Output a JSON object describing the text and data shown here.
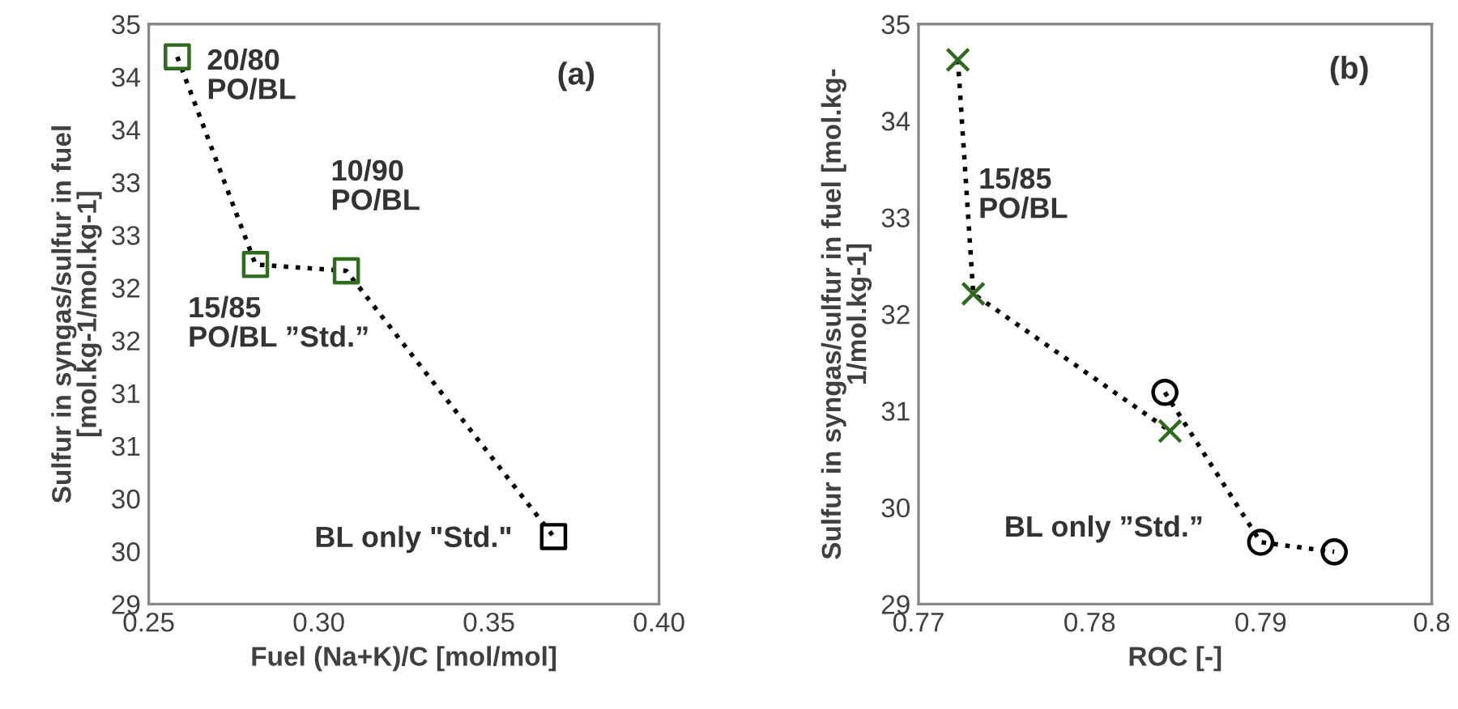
{
  "chart_data": [
    {
      "type": "scatter",
      "xlabel": "Fuel (Na+K)/C [mol/mol]",
      "ylabel": "Sulfur in syngas/sulfur in fuel\n[mol.kg-1/mol.kg-1]",
      "xlim": [
        0.25,
        0.4
      ],
      "xticks": [
        {
          "value": 0.25,
          "label": "0.25"
        },
        {
          "value": 0.3,
          "label": "0.30"
        },
        {
          "value": 0.35,
          "label": "0.35"
        },
        {
          "value": 0.4,
          "label": "0.40"
        }
      ],
      "ylim": [
        29,
        34.5
      ],
      "yticks": [
        29,
        {
          "value": 29.5,
          "label": "30"
        },
        30,
        {
          "value": 30.5,
          "label": "31"
        },
        31,
        {
          "value": 31.5,
          "label": "32"
        },
        32,
        {
          "value": 32.5,
          "label": "33"
        },
        33,
        {
          "value": 33.5,
          "label": "34"
        },
        34,
        {
          "value": 34.5,
          "label": "35"
        }
      ],
      "grid": false,
      "legend": false,
      "series": [
        {
          "type": "line",
          "color": "#000000",
          "marker": "none",
          "line_style": "dotted",
          "x": [
            0.2584,
            0.2814,
            0.3081,
            0.369
          ],
          "values": [
            34.19,
            32.22,
            32.16,
            29.64
          ]
        },
        {
          "type": "scatter",
          "color": "#2e6b1e",
          "marker": "square",
          "x": [
            0.2584,
            0.2814,
            0.3081
          ],
          "values": [
            34.19,
            32.22,
            32.16
          ]
        },
        {
          "type": "scatter",
          "color": "#000000",
          "marker": "square",
          "x": [
            0.369
          ],
          "values": [
            29.64
          ]
        }
      ],
      "annotations": [
        "20/80\nPO/BL",
        "10/90\nPO/BL",
        "15/85\nPO/BL ”Std.”",
        "BL only \"Std.\"",
        "(a)"
      ]
    },
    {
      "type": "scatter",
      "xlabel": "ROC [-]",
      "ylabel": "Sulfur in syngas/sulfur in fuel [mol.kg-\n1/mol.kg-1]",
      "xlim": [
        0.77,
        0.8
      ],
      "xticks": [
        0.77,
        0.78,
        0.79,
        0.8
      ],
      "ylim": [
        29,
        35
      ],
      "yticks": [
        29,
        30,
        31,
        32,
        33,
        34,
        35
      ],
      "grid": false,
      "legend": false,
      "series": [
        {
          "type": "line",
          "color": "#000000",
          "marker": "none",
          "line_style": "dotted",
          "x": [
            0.7723,
            0.7732,
            0.7847
          ],
          "values": [
            34.63,
            32.21,
            30.79
          ]
        },
        {
          "type": "line",
          "color": "#000000",
          "marker": "none",
          "line_style": "dotted",
          "x": [
            0.7844,
            0.79,
            0.7943
          ],
          "values": [
            31.19,
            29.64,
            29.54
          ]
        },
        {
          "type": "scatter",
          "color": "#2e6b1e",
          "marker": "cross",
          "x": [
            0.7723,
            0.7732,
            0.7847
          ],
          "values": [
            34.63,
            32.21,
            30.79
          ]
        },
        {
          "type": "scatter",
          "color": "#000000",
          "marker": "circle",
          "x": [
            0.7844,
            0.79,
            0.7943
          ],
          "values": [
            31.19,
            29.64,
            29.54
          ]
        }
      ],
      "annotations": [
        "15/85\nPO/BL",
        "BL only ”Std.”",
        "(b)"
      ]
    }
  ]
}
